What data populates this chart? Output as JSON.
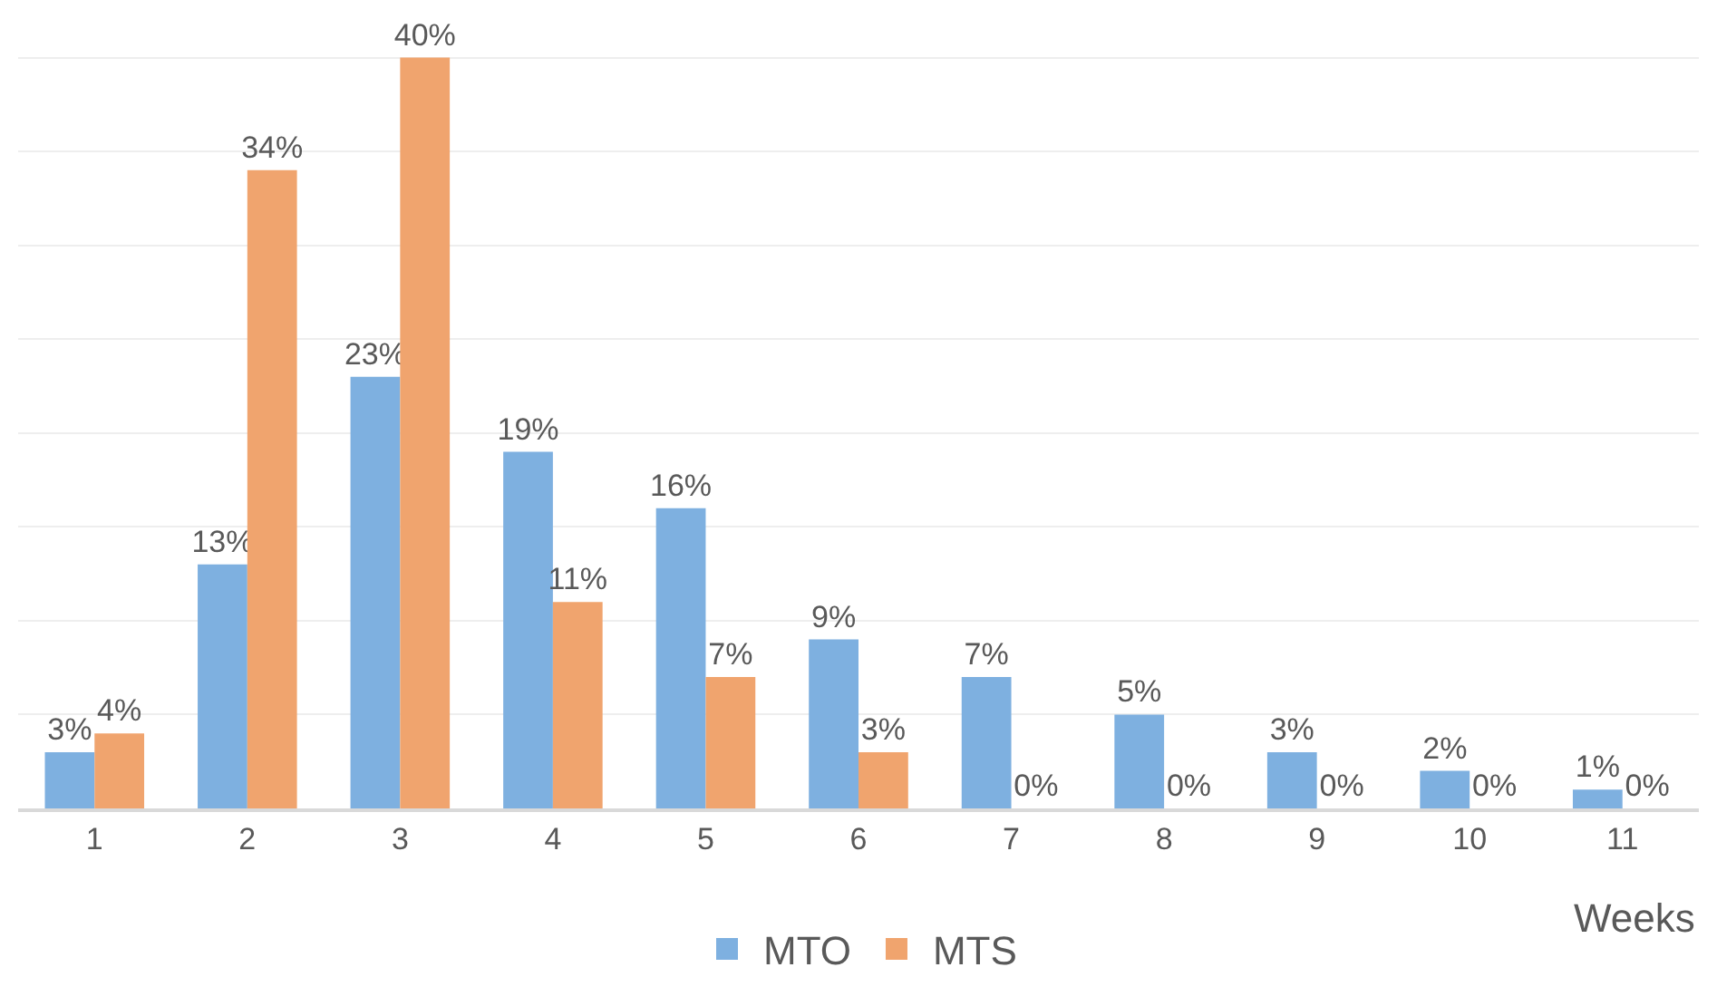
{
  "chart_data": {
    "type": "bar",
    "xlabel": "Weeks",
    "categories": [
      "1",
      "2",
      "3",
      "4",
      "5",
      "6",
      "7",
      "8",
      "9",
      "10",
      "11"
    ],
    "series": [
      {
        "name": "MTO",
        "color": "#7eb0e0",
        "values": [
          3,
          13,
          23,
          19,
          16,
          9,
          7,
          5,
          3,
          2,
          1
        ],
        "value_labels": [
          "3%",
          "13%",
          "23%",
          "19%",
          "16%",
          "9%",
          "7%",
          "5%",
          "3%",
          "2%",
          "1%"
        ]
      },
      {
        "name": "MTS",
        "color": "#f0a46e",
        "values": [
          4,
          34,
          40,
          11,
          7,
          3,
          0,
          0,
          0,
          0,
          0
        ],
        "value_labels": [
          "4%",
          "34%",
          "40%",
          "11%",
          "7%",
          "3%",
          "0%",
          "0%",
          "0%",
          "0%",
          "0%"
        ]
      }
    ],
    "grid": "y",
    "legend": "bottom",
    "tick_labels": "x"
  }
}
